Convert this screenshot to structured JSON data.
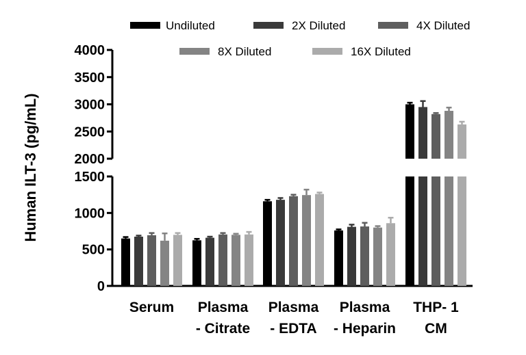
{
  "chart_data": {
    "type": "bar",
    "ylabel": "Human ILT-3 (pg/mL)",
    "xlabel": "",
    "categories": [
      [
        "Serum"
      ],
      [
        "Plasma",
        "- Citrate"
      ],
      [
        "Plasma",
        "- EDTA"
      ],
      [
        "Plasma",
        "- Heparin"
      ],
      [
        "THP- 1",
        "CM"
      ]
    ],
    "series": [
      {
        "name": "Undiluted",
        "color": "#000000",
        "values": [
          650,
          625,
          1160,
          760,
          3000
        ],
        "errors": [
          20,
          20,
          20,
          15,
          30
        ]
      },
      {
        "name": "2X Diluted",
        "color": "#3a3a3a",
        "values": [
          675,
          660,
          1180,
          810,
          2950
        ],
        "errors": [
          15,
          15,
          25,
          30,
          110
        ]
      },
      {
        "name": "4X Diluted",
        "color": "#5e5e5e",
        "values": [
          695,
          705,
          1230,
          815,
          2820
        ],
        "errors": [
          30,
          20,
          20,
          50,
          20
        ]
      },
      {
        "name": "8X Diluted",
        "color": "#848484",
        "values": [
          620,
          700,
          1245,
          800,
          2880
        ],
        "errors": [
          100,
          15,
          75,
          20,
          60
        ]
      },
      {
        "name": "16X Diluted",
        "color": "#ababab",
        "values": [
          700,
          705,
          1260,
          860,
          2630
        ],
        "errors": [
          25,
          35,
          20,
          75,
          50
        ]
      }
    ],
    "y_axis_segments": [
      {
        "range": [
          0,
          1500
        ],
        "ticks": [
          "0",
          "500",
          "1000",
          "1500"
        ],
        "tick_values": [
          0,
          500,
          1000,
          1500
        ]
      },
      {
        "range": [
          2000,
          4000
        ],
        "ticks": [
          "2000",
          "2500",
          "3000",
          "3500",
          "4000"
        ],
        "tick_values": [
          2000,
          2500,
          3000,
          3500,
          4000
        ]
      }
    ],
    "y_axis_break": [
      1500,
      2000
    ],
    "legend_position": "top",
    "grid": false
  }
}
